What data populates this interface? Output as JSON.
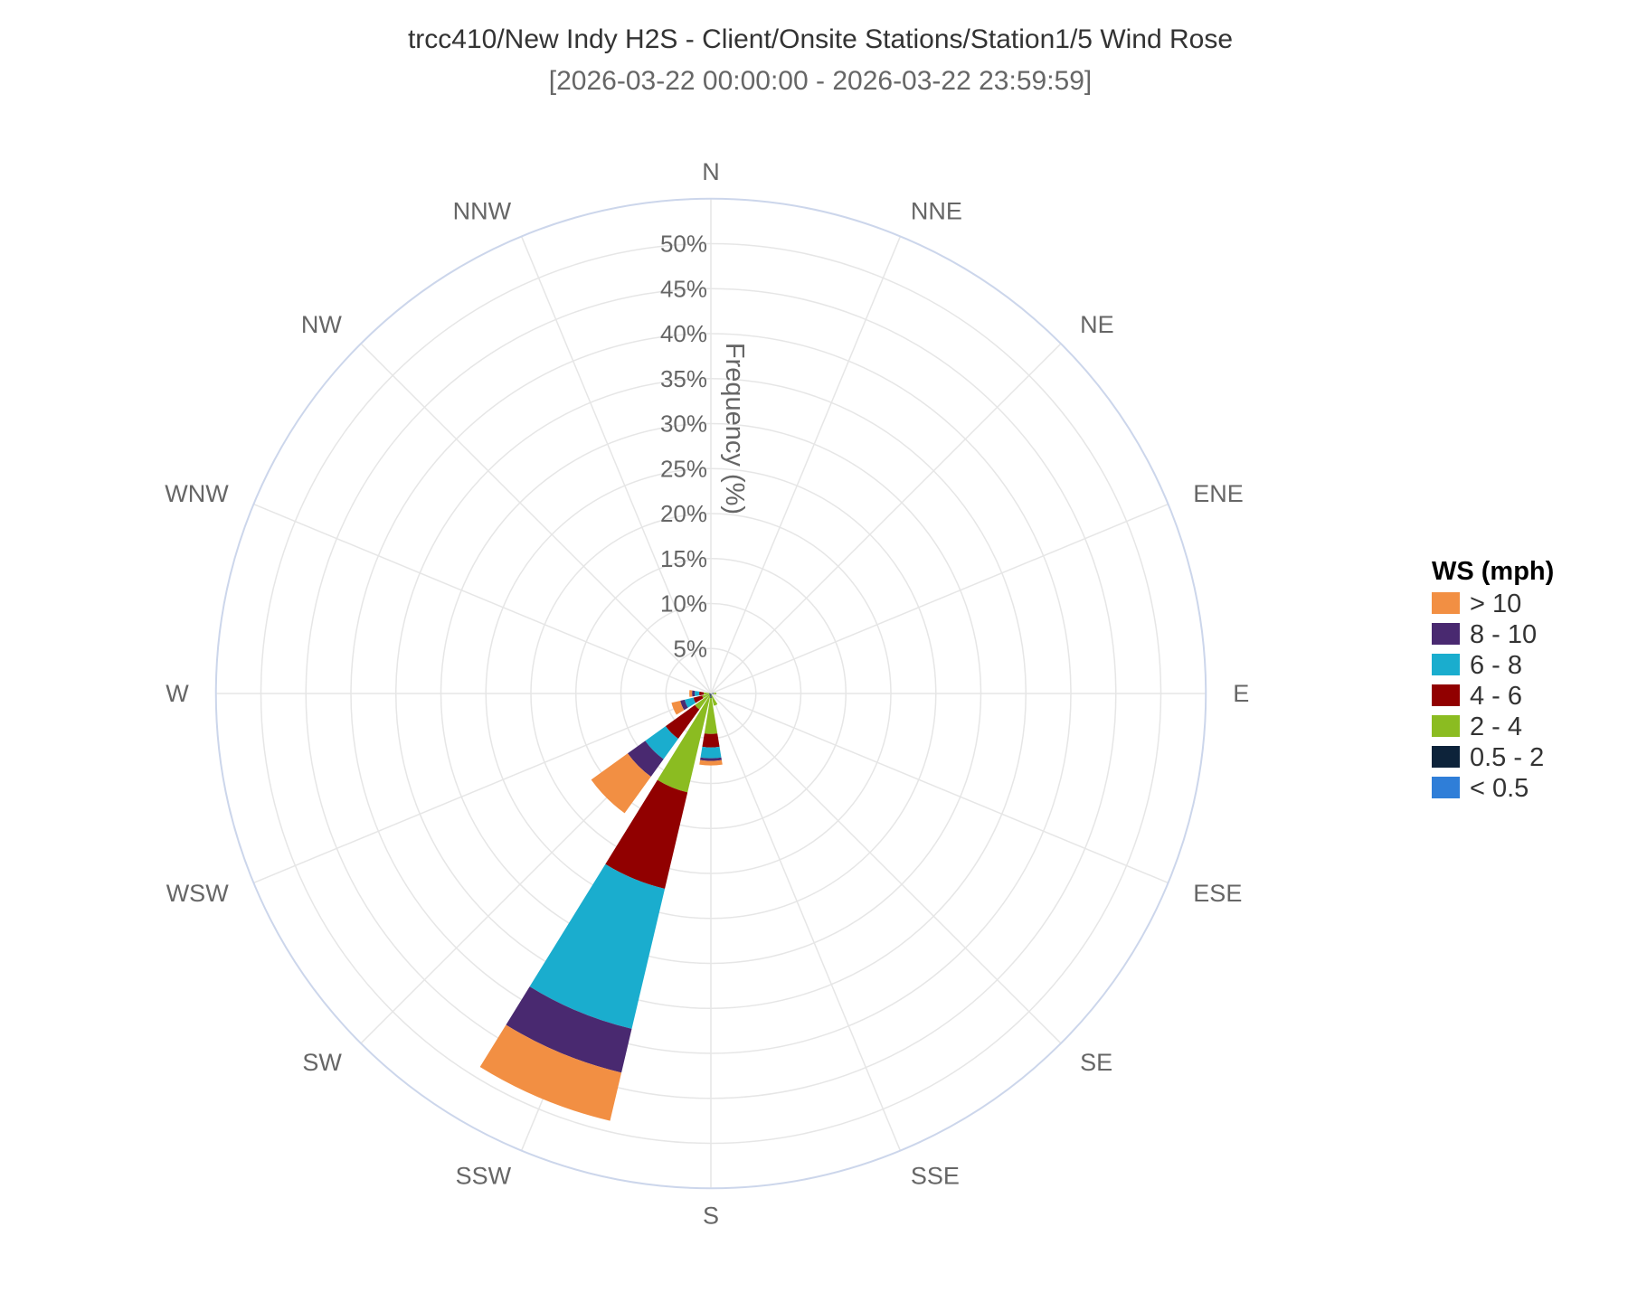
{
  "chart_data": {
    "type": "bar",
    "subtype": "polar-stacked-wind-rose",
    "title": "trcc410/New Indy H2S - Client/Onsite Stations/Station1/5 Wind Rose",
    "subtitle": "[2026-03-22 00:00:00 - 2026-03-22 23:59:59]",
    "radial_axis_label": "Frequency (%)",
    "radial_range": [
      0,
      55
    ],
    "radial_ticks": [
      5,
      10,
      15,
      20,
      25,
      30,
      35,
      40,
      45,
      50
    ],
    "radial_tick_labels": [
      "5%",
      "10%",
      "15%",
      "20%",
      "25%",
      "30%",
      "35%",
      "40%",
      "45%",
      "50%"
    ],
    "categories": [
      "N",
      "NNE",
      "NE",
      "ENE",
      "E",
      "ESE",
      "SE",
      "SSE",
      "S",
      "SSW",
      "SW",
      "WSW",
      "W",
      "WNW",
      "NW",
      "NNW"
    ],
    "legend": {
      "title": "WS (mph)",
      "placement": "right"
    },
    "series": [
      {
        "name": "< 0.5",
        "color": "#2f7ed8",
        "values": [
          0,
          0,
          0,
          0,
          0,
          0,
          0,
          0,
          0,
          0,
          0,
          0,
          0,
          0,
          0,
          0
        ]
      },
      {
        "name": "0.5 - 2",
        "color": "#0d233a",
        "values": [
          0,
          0,
          0,
          0,
          0.3,
          0,
          0,
          0.2,
          0.5,
          0.3,
          0.2,
          0.2,
          0.2,
          0,
          0,
          0
        ]
      },
      {
        "name": "2 - 4",
        "color": "#8bbc21",
        "values": [
          0,
          0,
          0,
          0,
          0.3,
          0,
          0,
          1.2,
          4.0,
          11.0,
          2.0,
          0.8,
          0.6,
          0,
          0,
          0
        ]
      },
      {
        "name": "4 - 6",
        "color": "#910000",
        "values": [
          0,
          0,
          0,
          0,
          0,
          0,
          0,
          0,
          1.5,
          11.0,
          4.0,
          1.0,
          0.5,
          0,
          0,
          0
        ]
      },
      {
        "name": "6 - 8",
        "color": "#1aadce",
        "values": [
          0,
          0,
          0,
          0,
          0,
          0,
          0,
          0,
          1.2,
          16.0,
          2.8,
          1.0,
          0.5,
          0,
          0,
          0
        ]
      },
      {
        "name": "8 - 10",
        "color": "#492970",
        "values": [
          0,
          0,
          0,
          0,
          0,
          0,
          0,
          0,
          0.3,
          5.0,
          2.4,
          0.5,
          0.3,
          0,
          0,
          0
        ]
      },
      {
        "name": "> 10",
        "color": "#f28f43",
        "values": [
          0,
          0,
          0,
          0,
          0,
          0,
          0,
          0,
          0.5,
          5.5,
          5.0,
          1.0,
          0.3,
          0,
          0,
          0
        ]
      }
    ],
    "colors": {
      "grid": "#e6e6e6",
      "outer_ring": "#ccd6eb",
      "label": "#666666",
      "title": "#333333"
    }
  }
}
